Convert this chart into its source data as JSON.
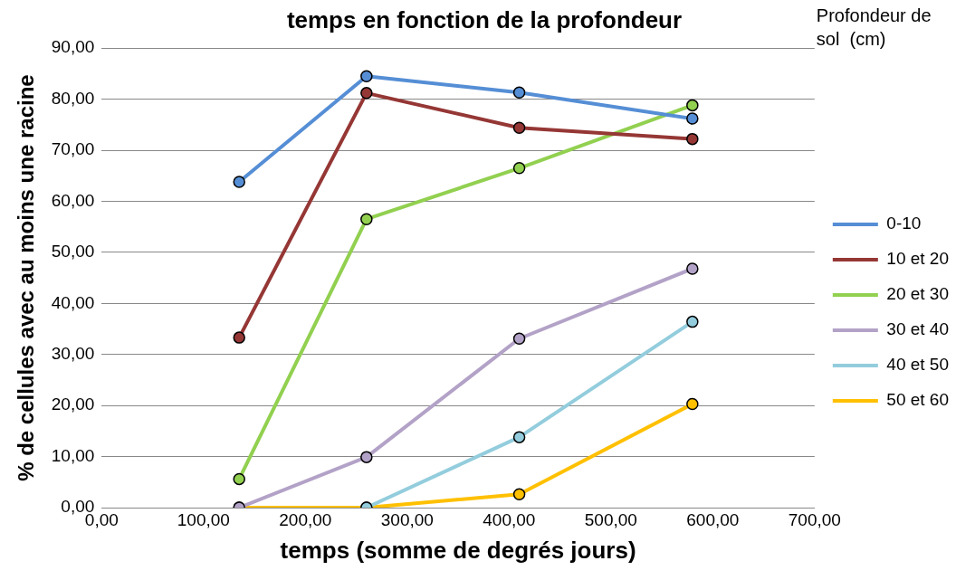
{
  "chart_data": {
    "type": "line",
    "title": "temps en fonction de la profondeur",
    "xlabel": "temps (somme de degrés jours)",
    "ylabel": "% de cellules avec au moins une racine",
    "legend_title": "Profondeur de sol  (cm)",
    "legend": "right",
    "grid": "y",
    "marker": "circle",
    "line_style": "solid",
    "x": [
      135,
      260,
      410,
      580
    ],
    "xlim": [
      0,
      700
    ],
    "xticks": [
      {
        "value": 0,
        "label": "0,00"
      },
      {
        "value": 100,
        "label": "100,00"
      },
      {
        "value": 200,
        "label": "200,00"
      },
      {
        "value": 300,
        "label": "300,00"
      },
      {
        "value": 400,
        "label": "400,00"
      },
      {
        "value": 500,
        "label": "500,00"
      },
      {
        "value": 600,
        "label": "600,00"
      },
      {
        "value": 700,
        "label": "700,00"
      }
    ],
    "ylim": [
      0,
      90
    ],
    "yticks": [
      {
        "value": 0,
        "label": "0,00"
      },
      {
        "value": 10,
        "label": "10,00"
      },
      {
        "value": 20,
        "label": "20,00"
      },
      {
        "value": 30,
        "label": "30,00"
      },
      {
        "value": 40,
        "label": "40,00"
      },
      {
        "value": 50,
        "label": "50,00"
      },
      {
        "value": 60,
        "label": "60,00"
      },
      {
        "value": 70,
        "label": "70,00"
      },
      {
        "value": 80,
        "label": "80,00"
      },
      {
        "value": 90,
        "label": "90,00"
      }
    ],
    "series": [
      {
        "name": "0-10",
        "color": "#558ed5",
        "values": [
          63.8,
          84.5,
          81.3,
          76.2
        ]
      },
      {
        "name": "10 et 20",
        "color": "#953735",
        "values": [
          33.3,
          81.2,
          74.4,
          72.2
        ]
      },
      {
        "name": "20 et 30",
        "color": "#92d050",
        "values": [
          5.6,
          56.5,
          66.5,
          78.8
        ]
      },
      {
        "name": "30 et 40",
        "color": "#b3a2c7",
        "values": [
          0,
          9.9,
          33.1,
          46.8
        ]
      },
      {
        "name": "40 et 50",
        "color": "#93cddd",
        "values": [
          null,
          0,
          13.8,
          36.4
        ]
      },
      {
        "name": "50 et 60",
        "color": "#ffc000",
        "values": [
          0,
          0,
          2.6,
          20.3
        ]
      }
    ]
  }
}
